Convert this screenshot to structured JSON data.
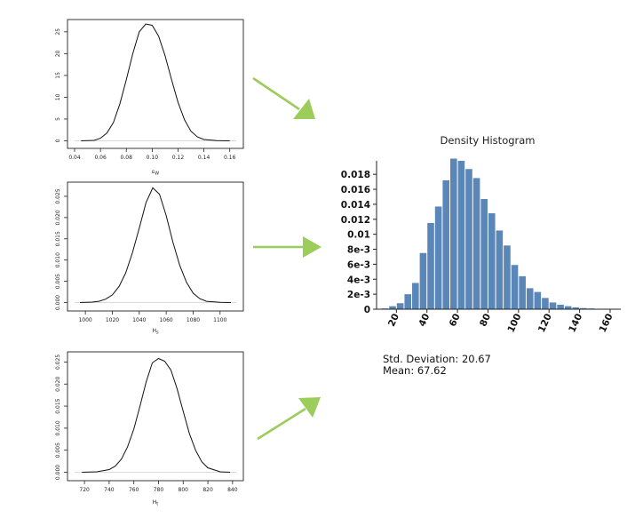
{
  "density_plots": [
    {
      "xlabel": "ε_W",
      "xticks": [
        "0.04",
        "0.06",
        "0.08",
        "0.10",
        "0.12",
        "0.14",
        "0.16"
      ],
      "yticks": [
        "0",
        "5",
        "10",
        "15",
        "20",
        "25"
      ]
    },
    {
      "xlabel": "H_s",
      "xticks": [
        "1000",
        "1020",
        "1040",
        "1060",
        "1080",
        "1100"
      ],
      "yticks": [
        "0.000",
        "0.005",
        "0.010",
        "0.015",
        "0.020",
        "0.025"
      ]
    },
    {
      "xlabel": "H_t",
      "xticks": [
        "720",
        "740",
        "760",
        "780",
        "800",
        "820",
        "840"
      ],
      "yticks": [
        "0.000",
        "0.005",
        "0.010",
        "0.015",
        "0.020",
        "0.025"
      ]
    }
  ],
  "arrow_color": "#9ccc5a",
  "bar_color": "#5b86b8",
  "chart_data": [
    {
      "type": "line",
      "xlabel": "ε_W",
      "xlim": [
        0.04,
        0.165
      ],
      "ylim": [
        0,
        27
      ],
      "series": [
        {
          "x": [
            0.045,
            0.055,
            0.06,
            0.065,
            0.07,
            0.075,
            0.08,
            0.085,
            0.09,
            0.095,
            0.1,
            0.105,
            0.11,
            0.115,
            0.12,
            0.125,
            0.13,
            0.135,
            0.14,
            0.15,
            0.16
          ],
          "y": [
            0,
            0.1,
            0.6,
            1.8,
            4.2,
            8.5,
            14,
            20,
            25,
            26.8,
            26.5,
            24,
            19.5,
            14,
            8.8,
            4.8,
            2.2,
            0.9,
            0.3,
            0.05,
            0
          ]
        }
      ]
    },
    {
      "type": "line",
      "xlabel": "H_s",
      "xlim": [
        992,
        1112
      ],
      "ylim": [
        0,
        0.0275
      ],
      "series": [
        {
          "x": [
            996,
            1005,
            1010,
            1015,
            1020,
            1025,
            1030,
            1035,
            1040,
            1045,
            1050,
            1055,
            1060,
            1065,
            1070,
            1075,
            1080,
            1085,
            1090,
            1100,
            1108
          ],
          "y": [
            0,
            0.0001,
            0.0003,
            0.0008,
            0.0018,
            0.0038,
            0.007,
            0.0118,
            0.0175,
            0.0235,
            0.027,
            0.0255,
            0.0205,
            0.0142,
            0.0088,
            0.0048,
            0.0022,
            0.0009,
            0.0003,
            5e-05,
            0
          ]
        }
      ]
    },
    {
      "type": "line",
      "xlabel": "H_t",
      "xlim": [
        712,
        843
      ],
      "ylim": [
        0,
        0.0265
      ],
      "series": [
        {
          "x": [
            718,
            730,
            740,
            745,
            750,
            755,
            760,
            765,
            770,
            775,
            780,
            785,
            790,
            795,
            800,
            805,
            810,
            815,
            820,
            830,
            838
          ],
          "y": [
            0,
            0.0001,
            0.0006,
            0.0014,
            0.003,
            0.0058,
            0.0098,
            0.015,
            0.0205,
            0.0248,
            0.0258,
            0.0252,
            0.0232,
            0.019,
            0.0138,
            0.0088,
            0.005,
            0.0024,
            0.001,
            0.0001,
            0
          ]
        }
      ]
    },
    {
      "type": "bar",
      "title": "Density Histogram",
      "bin_width": 5,
      "bin_start": 10,
      "values": [
        0.0001,
        0.0004,
        0.0008,
        0.002,
        0.0035,
        0.0075,
        0.0115,
        0.0137,
        0.0172,
        0.0201,
        0.0198,
        0.0187,
        0.0175,
        0.0147,
        0.0128,
        0.0105,
        0.0085,
        0.0059,
        0.0044,
        0.0028,
        0.0023,
        0.0015,
        0.0009,
        0.0006,
        0.0004,
        0.00025,
        0.00015,
        0.0001,
        5e-05
      ],
      "xticks": [
        "20",
        "40",
        "60",
        "80",
        "100",
        "120",
        "140",
        "160"
      ],
      "xtick_values": [
        20,
        40,
        60,
        80,
        100,
        120,
        140,
        160
      ],
      "yticks": [
        "0",
        "2e-3",
        "4e-3",
        "6e-3",
        "8e-3",
        "0.01",
        "0.012",
        "0.014",
        "0.016",
        "0.018"
      ],
      "ytick_values": [
        0,
        0.002,
        0.004,
        0.006,
        0.008,
        0.01,
        0.012,
        0.014,
        0.016,
        0.018
      ],
      "xlim": [
        7,
        167
      ],
      "ylim": [
        0,
        0.0198
      ]
    }
  ],
  "stats": {
    "std_label": "Std. Deviation: 20.67",
    "mean_label": "Mean: 67.62"
  }
}
